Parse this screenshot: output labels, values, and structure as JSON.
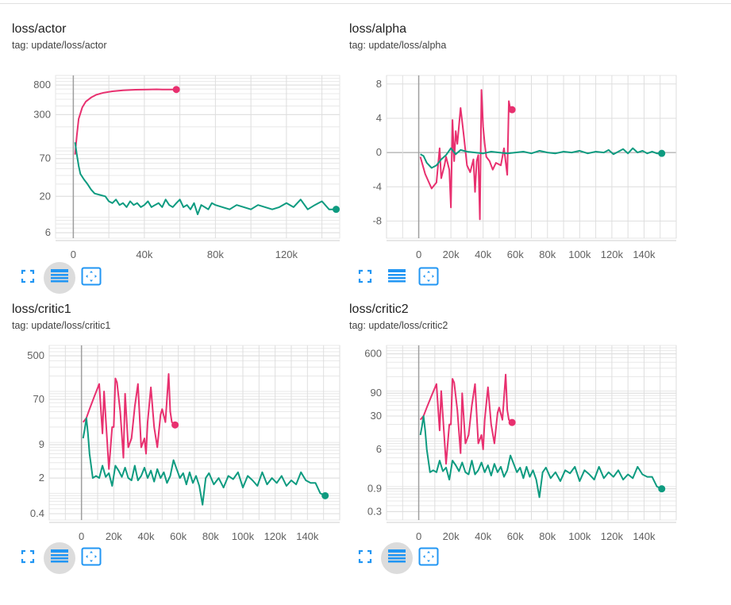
{
  "colors": {
    "pink": "#e8306f",
    "teal": "#0e9b80",
    "grid": "#dedede",
    "axis": "#9e9e9e",
    "icon": "#2196f3"
  },
  "icons": [
    "fullscreen-icon",
    "data-table-icon",
    "fit-domain-icon"
  ],
  "charts": [
    {
      "title": "loss/actor",
      "tag": "tag: update/loss/actor",
      "chart_data": {
        "type": "line",
        "y_scale": "log",
        "xlim": [
          -10000,
          150000
        ],
        "ylim": [
          5,
          1100
        ],
        "x_ticks": [
          0,
          40000,
          80000,
          120000
        ],
        "x_tick_labels": [
          "0",
          "40k",
          "80k",
          "120k"
        ],
        "y_ticks": [
          6,
          20,
          70,
          300,
          800
        ],
        "y_tick_labels": [
          "6",
          "20",
          "70",
          "300",
          "800"
        ],
        "series": [
          {
            "color": "#e8306f",
            "x": [
              1000,
              2000,
              3000,
              5000,
              7000,
              10000,
              13000,
              17000,
              22000,
              28000,
              35000,
              42000,
              47000,
              50000,
              54000,
              58000
            ],
            "y": [
              80,
              150,
              260,
              380,
              460,
              530,
              580,
              620,
              650,
              670,
              685,
              690,
              695,
              688,
              690,
              690
            ]
          },
          {
            "color": "#0e9b80",
            "x": [
              1000,
              2000,
              3000,
              4000,
              6000,
              8000,
              10000,
              12000,
              15000,
              18000,
              20000,
              22000,
              24000,
              26000,
              28000,
              30000,
              32000,
              34000,
              36000,
              38000,
              40000,
              42000,
              44000,
              46000,
              48000,
              50000,
              52000,
              54000,
              56000,
              58000,
              60000,
              62000,
              64000,
              66000,
              68000,
              70000,
              72000,
              74000,
              76000,
              78000,
              80000,
              84000,
              88000,
              92000,
              96000,
              100000,
              104000,
              108000,
              112000,
              116000,
              120000,
              124000,
              128000,
              132000,
              136000,
              140000,
              144000,
              148000
            ],
            "y": [
              120,
              80,
              55,
              42,
              35,
              30,
              25,
              22,
              21,
              20,
              17,
              16,
              18,
              15,
              16,
              14,
              17,
              15,
              16,
              14,
              15,
              17,
              14,
              15,
              16,
              14,
              18,
              15,
              14,
              16,
              18,
              14,
              15,
              13,
              16,
              11,
              15,
              14,
              13,
              16,
              15,
              14,
              13,
              15,
              14,
              13,
              15,
              14,
              13,
              14,
              16,
              14,
              18,
              13,
              15,
              17,
              13,
              13
            ]
          }
        ]
      }
    },
    {
      "title": "loss/alpha",
      "tag": "tag: update/loss/alpha",
      "chart_data": {
        "type": "line",
        "y_scale": "linear",
        "xlim": [
          -20000,
          160000
        ],
        "ylim": [
          -10,
          9
        ],
        "x_ticks": [
          0,
          20000,
          40000,
          60000,
          80000,
          100000,
          120000,
          140000
        ],
        "x_tick_labels": [
          "0",
          "20k",
          "40k",
          "60k",
          "80k",
          "100k",
          "120k",
          "140k"
        ],
        "y_ticks": [
          -8,
          -4,
          0,
          4,
          8
        ],
        "y_tick_labels": [
          "-8",
          "-4",
          "0",
          "4",
          "8"
        ],
        "series": [
          {
            "color": "#e8306f",
            "x": [
              1000,
              4000,
              8000,
              11000,
              13000,
              14000,
              16000,
              17000,
              19000,
              20000,
              21000,
              22000,
              23000,
              24000,
              26000,
              28000,
              30000,
              32000,
              34000,
              35000,
              36000,
              37000,
              38000,
              39000,
              40000,
              41000,
              42000,
              44000,
              46000,
              48000,
              51000,
              53000,
              55000,
              56000,
              57000,
              58000
            ],
            "y": [
              -0.5,
              -2.5,
              -4.2,
              -3.5,
              0.5,
              -3.0,
              -1.5,
              -0.5,
              -2.0,
              -6.4,
              3.8,
              -1.0,
              2.5,
              1.0,
              5.2,
              2.0,
              -1.5,
              -2.3,
              -0.8,
              -4.6,
              -1.0,
              -0.3,
              -7.8,
              7.3,
              3.0,
              1.0,
              -0.5,
              -1.0,
              -2.0,
              -1.2,
              -1.5,
              0.5,
              -2.6,
              6.0,
              5.0,
              5.0
            ]
          },
          {
            "color": "#0e9b80",
            "x": [
              1000,
              3000,
              5000,
              8000,
              11000,
              14000,
              17000,
              20000,
              23000,
              26000,
              30000,
              35000,
              40000,
              45000,
              50000,
              55000,
              60000,
              65000,
              70000,
              75000,
              80000,
              85000,
              90000,
              95000,
              100000,
              105000,
              110000,
              115000,
              118000,
              121000,
              124000,
              127000,
              130000,
              133000,
              136000,
              139000,
              142000,
              145000,
              148000,
              151000
            ],
            "y": [
              -0.2,
              -0.4,
              -1.2,
              -1.8,
              -1.5,
              -0.8,
              -0.3,
              0.5,
              -0.2,
              0.3,
              0.1,
              0.0,
              -0.1,
              0.1,
              0.0,
              -0.1,
              0.0,
              0.1,
              -0.1,
              0.2,
              0.0,
              -0.1,
              0.1,
              0.0,
              0.2,
              -0.1,
              0.1,
              0.0,
              0.3,
              -0.2,
              0.1,
              0.4,
              -0.1,
              0.5,
              0.0,
              0.2,
              -0.1,
              0.1,
              -0.1,
              -0.1
            ]
          }
        ]
      }
    },
    {
      "title": "loss/critic1",
      "tag": "tag: update/loss/critic1",
      "chart_data": {
        "type": "line",
        "y_scale": "log",
        "xlim": [
          -20000,
          160000
        ],
        "ylim": [
          0.3,
          800
        ],
        "x_ticks": [
          0,
          20000,
          40000,
          60000,
          80000,
          100000,
          120000,
          140000
        ],
        "x_tick_labels": [
          "0",
          "20k",
          "40k",
          "60k",
          "80k",
          "100k",
          "120k",
          "140k"
        ],
        "y_ticks": [
          0.4,
          2,
          9,
          70,
          500
        ],
        "y_tick_labels": [
          "0.4",
          "2",
          "9",
          "70",
          "500"
        ],
        "series": [
          {
            "color": "#e8306f",
            "x": [
              1000,
              3000,
              5000,
              8000,
              11000,
              13000,
              14000,
              15000,
              17000,
              19000,
              20000,
              21000,
              22000,
              24000,
              26000,
              27000,
              29000,
              31000,
              33000,
              35000,
              37000,
              39000,
              40000,
              41000,
              43000,
              45000,
              47000,
              49000,
              50000,
              52000,
              54000,
              55000,
              56000,
              58000
            ],
            "y": [
              25,
              30,
              45,
              80,
              140,
              15,
              100,
              30,
              3,
              20,
              20,
              180,
              150,
              40,
              5,
              90,
              8,
              12,
              50,
              140,
              8,
              12,
              6,
              25,
              120,
              20,
              8,
              35,
              45,
              25,
              220,
              40,
              25,
              22
            ]
          },
          {
            "color": "#0e9b80",
            "x": [
              1000,
              2000,
              3000,
              4000,
              5000,
              7000,
              9000,
              11000,
              13000,
              15000,
              17000,
              19000,
              21000,
              23000,
              25000,
              27000,
              29000,
              31000,
              33000,
              35000,
              37000,
              39000,
              41000,
              43000,
              45000,
              47000,
              49000,
              51000,
              53000,
              55000,
              57000,
              59000,
              61000,
              63000,
              65000,
              67000,
              69000,
              71000,
              73000,
              75000,
              77000,
              79000,
              82000,
              85000,
              88000,
              91000,
              94000,
              97000,
              100000,
              103000,
              106000,
              109000,
              112000,
              115000,
              118000,
              121000,
              124000,
              127000,
              130000,
              133000,
              136000,
              139000,
              142000,
              145000,
              148000,
              151000
            ],
            "y": [
              12,
              18,
              30,
              15,
              6,
              2,
              2.2,
              2.0,
              3.5,
              2.1,
              2.5,
              1.4,
              3.5,
              2.8,
              2.1,
              3.2,
              2.0,
              1.8,
              3.5,
              1.8,
              2.2,
              3.2,
              2.0,
              2.8,
              1.7,
              3.0,
              2.0,
              2.6,
              1.6,
              2.2,
              4.5,
              3.0,
              2.0,
              2.5,
              1.5,
              2.6,
              1.6,
              2.2,
              1.4,
              0.6,
              2.0,
              2.5,
              1.5,
              2.0,
              1.3,
              2.2,
              1.9,
              2.6,
              1.3,
              2.2,
              1.8,
              1.4,
              2.6,
              1.5,
              2.0,
              1.6,
              2.2,
              1.4,
              1.8,
              1.5,
              2.6,
              1.8,
              1.6,
              1.6,
              1.0,
              0.9
            ]
          }
        ]
      }
    },
    {
      "title": "loss/critic2",
      "tag": "tag: update/loss/critic2",
      "chart_data": {
        "type": "line",
        "y_scale": "log",
        "xlim": [
          -20000,
          160000
        ],
        "ylim": [
          0.2,
          900
        ],
        "x_ticks": [
          0,
          20000,
          40000,
          60000,
          80000,
          100000,
          120000,
          140000
        ],
        "x_tick_labels": [
          "0",
          "20k",
          "40k",
          "60k",
          "80k",
          "100k",
          "120k",
          "140k"
        ],
        "y_ticks": [
          0.3,
          0.9,
          6,
          30,
          90,
          600
        ],
        "y_tick_labels": [
          "0.3",
          "0.9",
          "6",
          "30",
          "90",
          "600"
        ],
        "series": [
          {
            "color": "#e8306f",
            "x": [
              1000,
              3000,
              5000,
              8000,
              11000,
              13000,
              14000,
              15000,
              17000,
              19000,
              20000,
              21000,
              22000,
              24000,
              26000,
              27000,
              29000,
              31000,
              33000,
              35000,
              37000,
              39000,
              40000,
              41000,
              43000,
              45000,
              47000,
              49000,
              50000,
              52000,
              54000,
              55000,
              56000,
              58000
            ],
            "y": [
              25,
              30,
              45,
              80,
              140,
              15,
              100,
              30,
              3,
              20,
              20,
              180,
              150,
              40,
              5,
              90,
              8,
              12,
              50,
              140,
              8,
              12,
              6,
              25,
              120,
              20,
              8,
              35,
              45,
              25,
              220,
              40,
              25,
              22
            ]
          },
          {
            "color": "#0e9b80",
            "x": [
              1000,
              2000,
              3000,
              4000,
              5000,
              7000,
              9000,
              11000,
              13000,
              15000,
              17000,
              19000,
              21000,
              23000,
              25000,
              27000,
              29000,
              31000,
              33000,
              35000,
              37000,
              39000,
              41000,
              43000,
              45000,
              47000,
              49000,
              51000,
              53000,
              55000,
              57000,
              59000,
              61000,
              63000,
              65000,
              67000,
              69000,
              71000,
              73000,
              75000,
              77000,
              79000,
              82000,
              85000,
              88000,
              91000,
              94000,
              97000,
              100000,
              103000,
              106000,
              109000,
              112000,
              115000,
              118000,
              121000,
              124000,
              127000,
              130000,
              133000,
              136000,
              139000,
              142000,
              145000,
              148000,
              151000
            ],
            "y": [
              12,
              18,
              30,
              15,
              6,
              2,
              2.2,
              2.0,
              3.5,
              2.1,
              2.5,
              1.4,
              3.5,
              2.8,
              2.1,
              3.2,
              2.0,
              1.8,
              3.5,
              1.8,
              2.2,
              3.2,
              2.0,
              2.8,
              1.7,
              3.0,
              2.0,
              2.6,
              1.6,
              2.2,
              4.5,
              3.0,
              2.0,
              2.5,
              1.5,
              2.6,
              1.6,
              2.2,
              1.4,
              0.6,
              2.0,
              2.5,
              1.5,
              2.0,
              1.3,
              2.2,
              1.9,
              2.6,
              1.3,
              2.2,
              1.8,
              1.4,
              2.6,
              1.5,
              2.0,
              1.6,
              2.2,
              1.4,
              1.8,
              1.5,
              2.6,
              1.8,
              1.6,
              1.6,
              1.0,
              0.9
            ]
          }
        ]
      }
    }
  ]
}
